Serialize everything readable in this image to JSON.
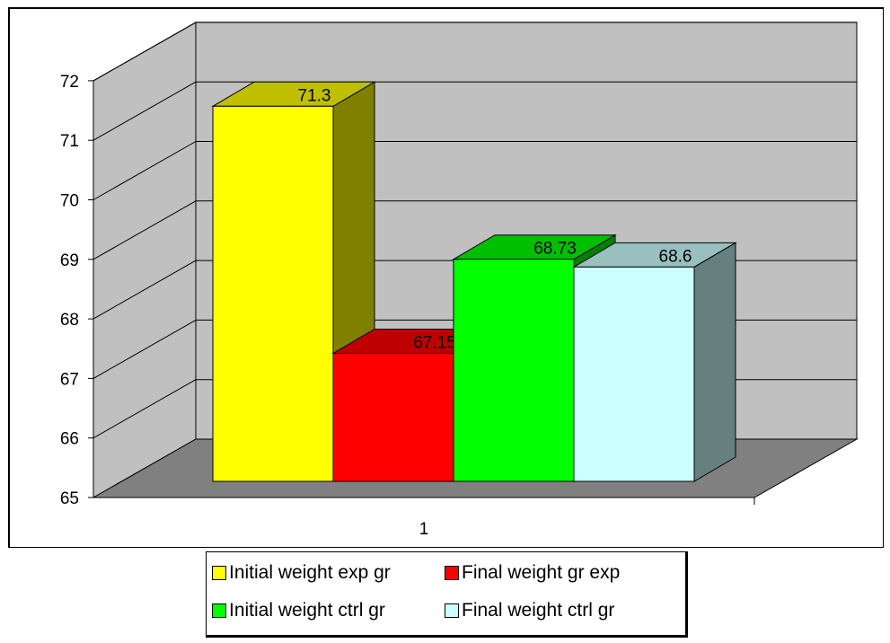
{
  "chart_data": {
    "type": "bar",
    "three_d": true,
    "categories": [
      "1"
    ],
    "series": [
      {
        "name": "Initial weight exp gr",
        "values": [
          71.3
        ],
        "label": "71.3",
        "color": "#ffff00"
      },
      {
        "name": "Final weight gr exp",
        "values": [
          67.15
        ],
        "label": "67.15",
        "color": "#ff0000"
      },
      {
        "name": "Initial weight ctrl gr",
        "values": [
          68.73
        ],
        "label": "68.73",
        "color": "#00ff00"
      },
      {
        "name": "Final weight ctrl gr",
        "values": [
          68.6
        ],
        "label": "68.6",
        "color": "#ccffff"
      }
    ],
    "ylim": [
      65,
      72
    ],
    "yticks": [
      "65",
      "66",
      "67",
      "68",
      "69",
      "70",
      "71",
      "72"
    ],
    "grid": true,
    "legend_position": "bottom",
    "colors": {
      "wall": "#c0c0c0",
      "floor": "#808080",
      "gridline": "#000000"
    }
  }
}
